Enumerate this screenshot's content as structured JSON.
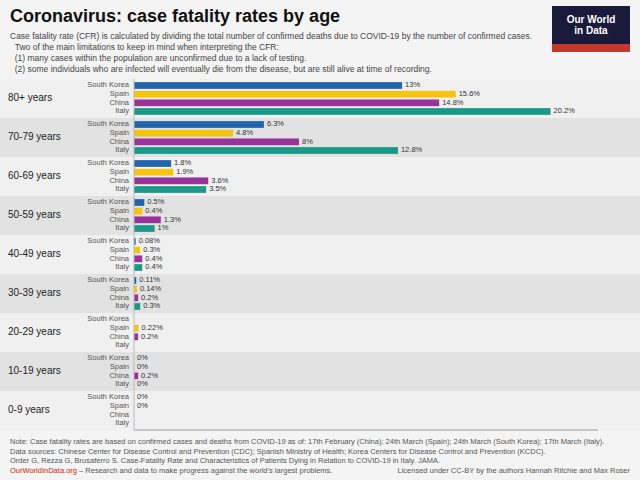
{
  "chart_data": {
    "type": "bar",
    "orientation": "horizontal",
    "title": "Coronavirus: case fatality rates by age",
    "subtitle": [
      "Case fatality rate (CFR) is calculated by dividing the total number of confirmed deaths due to COVID-19 by the number of confirmed cases.",
      "  Two of the main limitations to keep in mind when interpreting the CFR:",
      "  (1) many cases within the population are unconfirmed due to a lack of testing.",
      "  (2) some individuals who are infected will eventually die from the disease, but are still alive at time of recording."
    ],
    "annotations": [
      "Our World",
      "in Data",
      "Note: Case fatality rates are based on confirmed cases and deaths from COVID-19 as of: 17th February (China); 24th March (Spain); 24th March (South Korea); 17th March (Italy).",
      "Data sources: Chinese Center for Disease Control and Prevention (CDC); Spanish Ministry of Health; Korea Centers for Disease Control and Prevention (KCDC).",
      "Order G, Rezza G, Brusaferro S. Case-Fatality Rate and Characteristics of Patients Dying in Relation to COVID-19 in Italy. JAMA.",
      "OurWorldInData.org",
      " – Research and data to make progress against the world’s largest problems.",
      "Licensed under CC-BY by the authors Hannah Ritchie and Max Roser"
    ],
    "categories": [
      "0-9 years",
      "10-19 years",
      "20-29 years",
      "30-39 years",
      "40-49 years",
      "50-59 years",
      "60-69 years",
      "70-79 years",
      "80+ years"
    ],
    "series": [
      {
        "name": "South Korea",
        "color": "#2166ac",
        "values": [
          0,
          0,
          0,
          0.11,
          0.08,
          0.5,
          1.8,
          6.3,
          13.0
        ],
        "value_labels": [
          "0%",
          "0%",
          null,
          "0.11%",
          "0.08%",
          "0.5%",
          "1.8%",
          "6.3%",
          "13%"
        ]
      },
      {
        "name": "Spain",
        "color": "#f4c40f",
        "values": [
          0,
          0,
          0.22,
          0.14,
          0.3,
          0.4,
          1.9,
          4.8,
          15.6
        ],
        "value_labels": [
          "0%",
          "0%",
          "0.22%",
          "0.14%",
          "0.3%",
          "0.4%",
          "1.9%",
          "4.8%",
          "15.6%"
        ]
      },
      {
        "name": "China",
        "color": "#993399",
        "values": [
          0,
          0.2,
          0.2,
          0.2,
          0.4,
          1.3,
          3.6,
          8.0,
          14.8
        ],
        "value_labels": [
          null,
          "0.2%",
          "0.2%",
          "0.2%",
          "0.4%",
          "1.3%",
          "3.6%",
          "8%",
          "14.8%"
        ]
      },
      {
        "name": "Italy",
        "color": "#1a9988",
        "values": [
          0,
          0,
          0,
          0.3,
          0.4,
          1.0,
          3.5,
          12.8,
          20.2
        ],
        "value_labels": [
          null,
          "0%",
          null,
          "0.3%",
          "0.4%",
          "1%",
          "3.5%",
          "12.8%",
          "20.2%"
        ]
      }
    ],
    "xlim": [
      0,
      22.5
    ],
    "tick_labels": false,
    "grid": false,
    "data_labels": true
  }
}
